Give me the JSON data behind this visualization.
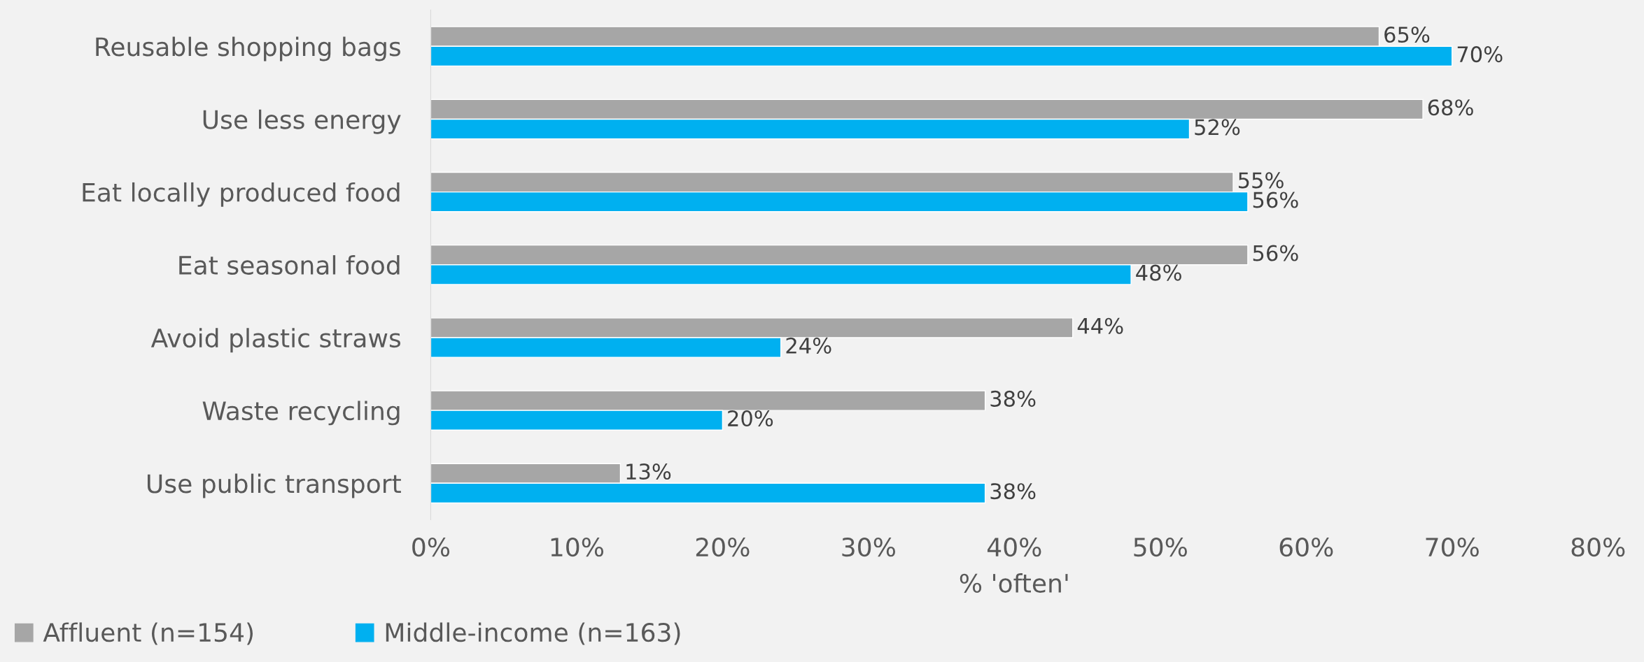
{
  "chart_data": {
    "type": "bar",
    "orientation": "horizontal",
    "xlabel": "% 'often'",
    "categories": [
      "Reusable shopping bags",
      "Use less energy",
      "Eat locally produced food",
      "Eat seasonal food",
      "Avoid plastic straws",
      "Waste recycling",
      "Use public transport"
    ],
    "series": [
      {
        "name": "Affluent (n=154)",
        "color": "#a6a6a6",
        "values": [
          65,
          68,
          55,
          56,
          44,
          38,
          13
        ],
        "value_labels": [
          "65%",
          "68%",
          "55%",
          "56%",
          "44%",
          "38%",
          "13%"
        ]
      },
      {
        "name": "Middle-income (n=163)",
        "color": "#00b0f0",
        "values": [
          70,
          52,
          56,
          48,
          24,
          20,
          38
        ],
        "value_labels": [
          "70%",
          "52%",
          "56%",
          "48%",
          "24%",
          "20%",
          "38%"
        ]
      }
    ],
    "xlim": [
      0,
      80
    ],
    "xticks": [
      {
        "value": 0,
        "label": "0%"
      },
      {
        "value": 10,
        "label": "10%"
      },
      {
        "value": 20,
        "label": "20%"
      },
      {
        "value": 30,
        "label": "30%"
      },
      {
        "value": 40,
        "label": "40%"
      },
      {
        "value": 50,
        "label": "50%"
      },
      {
        "value": 60,
        "label": "60%"
      },
      {
        "value": 70,
        "label": "70%"
      },
      {
        "value": 80,
        "label": "80%"
      }
    ],
    "grid": false,
    "legend": "bottom left"
  }
}
